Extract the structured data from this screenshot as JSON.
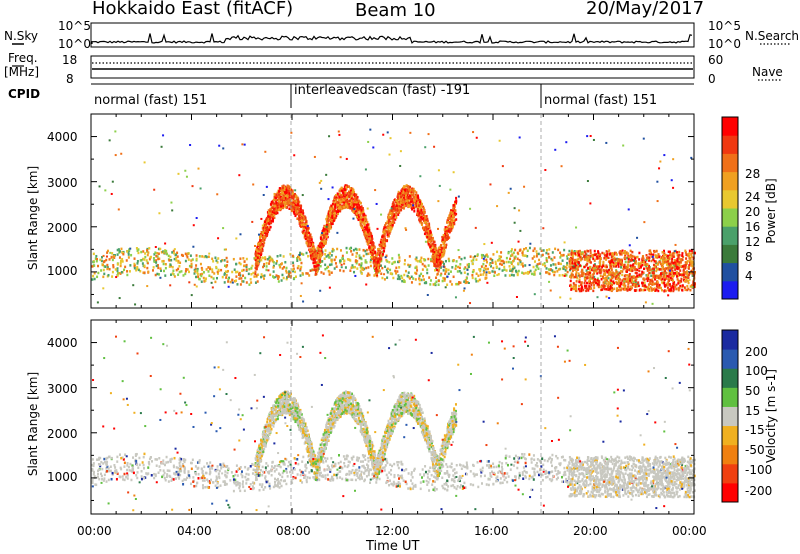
{
  "header": {
    "station": "Hokkaido East (fitACF)",
    "beam": "Beam 10",
    "date": "20/May/2017"
  },
  "left_labels": {
    "nsky": "N.Sky",
    "freq": "Freq.",
    "freq_unit": "[MHz]",
    "cpid": "CPID"
  },
  "right_labels": {
    "nsearch": "N.Search",
    "nave": "Nave"
  },
  "cpid_segments": [
    {
      "label": "normal (fast) 151",
      "start_hour": 0,
      "end_hour": 8
    },
    {
      "label": "interleavedscan (fast) -191",
      "start_hour": 8,
      "end_hour": 18
    },
    {
      "label": "normal (fast) 151",
      "start_hour": 18,
      "end_hour": 24
    }
  ],
  "noise_axis": {
    "left_top": "10^5",
    "left_bottom": "10^0",
    "right_top": "10^5",
    "right_bottom": "10^0"
  },
  "freq_axis": {
    "left_top": "18",
    "left_bottom": "8",
    "right_top": "60",
    "right_bottom": "0"
  },
  "time_ticks": [
    "00:00",
    "04:00",
    "08:00",
    "12:00",
    "16:00",
    "20:00",
    "00:00"
  ],
  "xlabel": "Time UT",
  "colors": {
    "power_scale": [
      "#1c1cf0",
      "#2050a0",
      "#3a7a3a",
      "#4aa06a",
      "#8cd04a",
      "#e8c830",
      "#f0a020",
      "#f07018",
      "#f03810",
      "#ff0000"
    ],
    "velocity_scale": [
      "#1a2aa0",
      "#2a5ab0",
      "#2a7a4a",
      "#60c040",
      "#c8c8c0",
      "#f0b020",
      "#f08010",
      "#f04010",
      "#ff0000"
    ]
  },
  "chart_data": [
    {
      "type": "heatmap",
      "title": "",
      "xlabel": "Time UT",
      "ylabel": "Slant Range [km]",
      "xlim_hours": [
        0,
        24
      ],
      "ylim": [
        200,
        4500
      ],
      "yticks": [
        "1000",
        "2000",
        "3000",
        "4000"
      ],
      "colorbar": {
        "label": "Power [dB]",
        "ticks": [
          "4",
          "8",
          "12",
          "16",
          "20",
          "24",
          "28"
        ],
        "range": [
          0,
          30
        ]
      },
      "echo_regions": [
        {
          "name": "near band",
          "t": [
            0,
            24
          ],
          "range_km": [
            800,
            1500
          ],
          "value": 18
        },
        {
          "name": "main arcs",
          "t": [
            6.5,
            14.5
          ],
          "range_km": [
            900,
            3000
          ],
          "value": 27
        },
        {
          "name": "late band",
          "t": [
            19,
            24
          ],
          "range_km": [
            600,
            1500
          ],
          "value": 24
        }
      ]
    },
    {
      "type": "heatmap",
      "title": "",
      "xlabel": "Time UT",
      "ylabel": "Slant Range [km]",
      "xlim_hours": [
        0,
        24
      ],
      "ylim": [
        200,
        4500
      ],
      "yticks": [
        "1000",
        "2000",
        "3000",
        "4000"
      ],
      "colorbar": {
        "label": "Velocity [m s-1]",
        "ticks": [
          "200",
          "100",
          "50",
          "15",
          "-15",
          "-50",
          "-100",
          "-200"
        ],
        "range": [
          -250,
          250
        ]
      },
      "echo_regions": [
        {
          "name": "near band",
          "t": [
            0,
            24
          ],
          "range_km": [
            800,
            1500
          ],
          "value": 0
        },
        {
          "name": "main arcs",
          "t": [
            6.5,
            14.5
          ],
          "range_km": [
            900,
            3000
          ],
          "value": -30
        },
        {
          "name": "arc edge",
          "t": [
            11.5,
            12.5
          ],
          "range_km": [
            1200,
            2800
          ],
          "value": 40
        }
      ]
    }
  ]
}
